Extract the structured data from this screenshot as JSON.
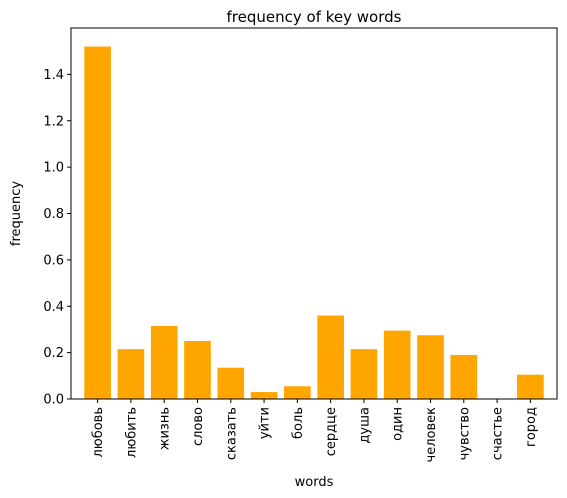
{
  "chart_data": {
    "type": "bar",
    "title": "frequency of key words",
    "xlabel": "words",
    "ylabel": "frequency",
    "categories": [
      "любовь",
      "любить",
      "жизнь",
      "слово",
      "сказать",
      "уйти",
      "боль",
      "сердце",
      "душа",
      "один",
      "человек",
      "чувство",
      "счастье",
      "город"
    ],
    "values": [
      1.52,
      0.215,
      0.315,
      0.25,
      0.135,
      0.03,
      0.055,
      0.36,
      0.215,
      0.295,
      0.275,
      0.19,
      0.0,
      0.105
    ],
    "ylim": [
      0,
      1.6
    ],
    "yticks": [
      0.0,
      0.2,
      0.4,
      0.6,
      0.8,
      1.0,
      1.2,
      1.4
    ],
    "ytick_labels": [
      "0.0",
      "0.2",
      "0.4",
      "0.6",
      "0.8",
      "1.0",
      "1.2",
      "1.4"
    ],
    "bar_color": "#ffa500",
    "grid": false,
    "legend": "none"
  }
}
